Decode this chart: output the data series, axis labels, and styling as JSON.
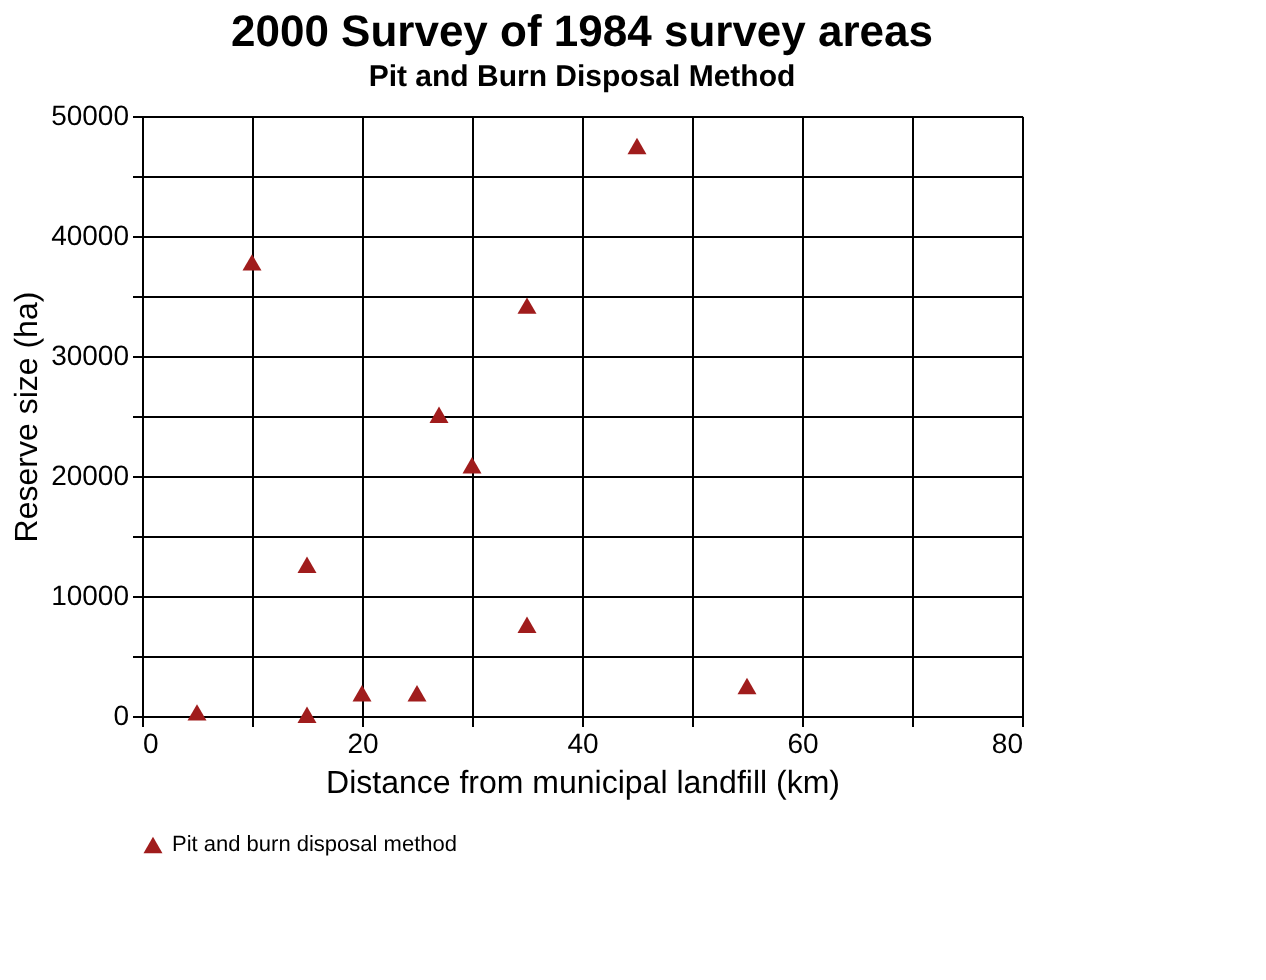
{
  "chart_data": {
    "type": "scatter",
    "title": "2000 Survey of 1984 survey areas",
    "subtitle": "Pit and Burn Disposal Method",
    "xlabel": "Distance from municipal landfill (km)",
    "ylabel": "Reserve size (ha)",
    "series": [
      {
        "name": "Pit and burn disposal method",
        "color": "#a01c1c",
        "x": [
          5,
          10,
          35,
          27,
          30,
          15,
          35,
          15,
          20,
          25,
          45,
          55
        ],
        "values": [
          300,
          37800,
          34200,
          25100,
          20900,
          12600,
          7600,
          100,
          1900,
          1900,
          47500,
          2500
        ]
      }
    ],
    "xlim": [
      0,
      80
    ],
    "xticks": [
      0,
      {
        "value": 10,
        "label": null
      },
      20,
      {
        "value": 30,
        "label": null
      },
      40,
      {
        "value": 50,
        "label": null
      },
      60,
      {
        "value": 70,
        "label": null
      },
      80
    ],
    "ylim": [
      0,
      50000
    ],
    "yticks": [
      0,
      {
        "value": 5000,
        "label": null
      },
      10000,
      {
        "value": 15000,
        "label": null
      },
      20000,
      {
        "value": 25000,
        "label": null
      },
      30000,
      {
        "value": 35000,
        "label": null
      },
      40000,
      {
        "value": 45000,
        "label": null
      },
      50000
    ],
    "grid": true,
    "legend": "bottom",
    "marker": "triangle"
  }
}
